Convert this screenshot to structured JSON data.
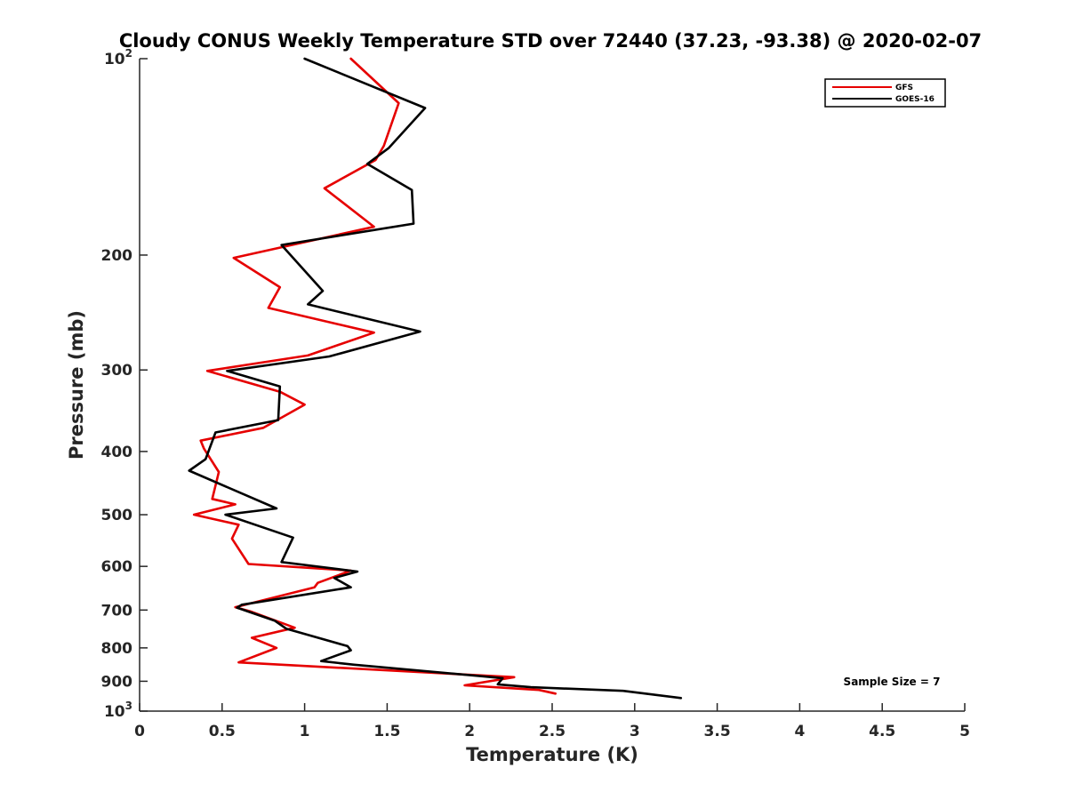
{
  "chart_data": {
    "type": "line",
    "title": "Cloudy CONUS Weekly Temperature STD over 72440 (37.23, -93.38) @ 2020-02-07",
    "xlabel": "Temperature (K)",
    "ylabel": "Pressure (mb)",
    "xlim": [
      0,
      5
    ],
    "ylim": [
      100,
      1000
    ],
    "y_scale": "log",
    "y_reversed": true,
    "grid": false,
    "legend_position": "top-right",
    "note": "Sample Size = 7",
    "x_ticks": [
      "0",
      "0.5",
      "1",
      "1.5",
      "2",
      "2.5",
      "3",
      "3.5",
      "4",
      "4.5",
      "5"
    ],
    "y_ticks": [
      {
        "value": 100,
        "base": "10",
        "exp": "2"
      },
      {
        "value": 200,
        "label": "200"
      },
      {
        "value": 300,
        "label": "300"
      },
      {
        "value": 400,
        "label": "400"
      },
      {
        "value": 500,
        "label": "500"
      },
      {
        "value": 600,
        "label": "600"
      },
      {
        "value": 700,
        "label": "700"
      },
      {
        "value": 800,
        "label": "800"
      },
      {
        "value": 900,
        "label": "900"
      },
      {
        "value": 1000,
        "base": "10",
        "exp": "3"
      }
    ],
    "series": [
      {
        "name": "GFS",
        "color": "#e60000",
        "points": [
          [
            1.28,
            100
          ],
          [
            1.57,
            117
          ],
          [
            1.48,
            136
          ],
          [
            1.43,
            143
          ],
          [
            1.12,
            158
          ],
          [
            1.42,
            181
          ],
          [
            0.57,
            202
          ],
          [
            0.85,
            224
          ],
          [
            0.78,
            241
          ],
          [
            1.42,
            263
          ],
          [
            1.02,
            285
          ],
          [
            0.41,
            301
          ],
          [
            0.85,
            324
          ],
          [
            1.0,
            339
          ],
          [
            0.75,
            368
          ],
          [
            0.37,
            385
          ],
          [
            0.39,
            396
          ],
          [
            0.48,
            430
          ],
          [
            0.44,
            473
          ],
          [
            0.58,
            482
          ],
          [
            0.33,
            500
          ],
          [
            0.6,
            518
          ],
          [
            0.56,
            544
          ],
          [
            0.66,
            595
          ],
          [
            1.28,
            609
          ],
          [
            1.08,
            636
          ],
          [
            1.06,
            646
          ],
          [
            0.58,
            693
          ],
          [
            0.67,
            703
          ],
          [
            0.94,
            745
          ],
          [
            0.68,
            772
          ],
          [
            0.83,
            800
          ],
          [
            0.6,
            842
          ],
          [
            2.27,
            887
          ],
          [
            1.97,
            913
          ],
          [
            2.42,
            928
          ],
          [
            2.52,
            940
          ]
        ]
      },
      {
        "name": "GOES-16",
        "color": "#000000",
        "points": [
          [
            1.0,
            100
          ],
          [
            1.73,
            119
          ],
          [
            1.51,
            137
          ],
          [
            1.38,
            145
          ],
          [
            1.65,
            159
          ],
          [
            1.66,
            179
          ],
          [
            0.86,
            193
          ],
          [
            1.11,
            227
          ],
          [
            1.02,
            238
          ],
          [
            1.7,
            262
          ],
          [
            1.15,
            286
          ],
          [
            0.53,
            301
          ],
          [
            0.85,
            318
          ],
          [
            0.84,
            358
          ],
          [
            0.46,
            374
          ],
          [
            0.4,
            411
          ],
          [
            0.3,
            428
          ],
          [
            0.83,
            489
          ],
          [
            0.52,
            500
          ],
          [
            0.93,
            542
          ],
          [
            0.86,
            591
          ],
          [
            1.32,
            611
          ],
          [
            1.18,
            625
          ],
          [
            1.28,
            646
          ],
          [
            0.62,
            687
          ],
          [
            0.59,
            694
          ],
          [
            0.82,
            727
          ],
          [
            0.89,
            748
          ],
          [
            1.26,
            795
          ],
          [
            1.28,
            807
          ],
          [
            1.1,
            838
          ],
          [
            1.3,
            849
          ],
          [
            2.2,
            890
          ],
          [
            2.17,
            910
          ],
          [
            2.37,
            919
          ],
          [
            2.93,
            931
          ],
          [
            3.28,
            955
          ]
        ]
      }
    ]
  }
}
